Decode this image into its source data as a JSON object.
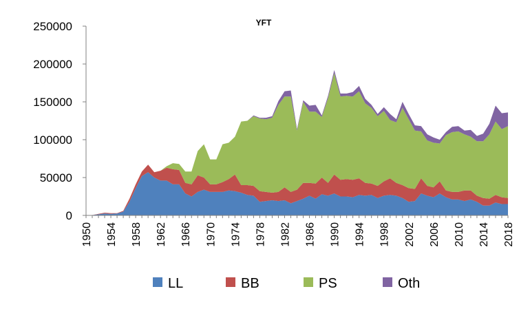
{
  "chart_data": {
    "type": "area",
    "stacked": true,
    "title": "YFT",
    "xlabel": "",
    "ylabel": "",
    "xlim": [
      1950,
      2018
    ],
    "ylim": [
      0,
      250000
    ],
    "y_ticks": [
      "0",
      "50000",
      "100000",
      "150000",
      "200000",
      "250000"
    ],
    "x_ticks": [
      "1950",
      "1954",
      "1958",
      "1962",
      "1966",
      "1970",
      "1974",
      "1978",
      "1982",
      "1986",
      "1990",
      "1994",
      "1998",
      "2002",
      "2006",
      "2010",
      "2014",
      "2018"
    ],
    "grid": false,
    "legend_position": "bottom",
    "x": [
      1950,
      1951,
      1952,
      1953,
      1954,
      1955,
      1956,
      1957,
      1958,
      1959,
      1960,
      1961,
      1962,
      1963,
      1964,
      1965,
      1966,
      1967,
      1968,
      1969,
      1970,
      1971,
      1972,
      1973,
      1974,
      1975,
      1976,
      1977,
      1978,
      1979,
      1980,
      1981,
      1982,
      1983,
      1984,
      1985,
      1986,
      1987,
      1988,
      1989,
      1990,
      1991,
      1992,
      1993,
      1994,
      1995,
      1996,
      1997,
      1998,
      1999,
      2000,
      2001,
      2002,
      2003,
      2004,
      2005,
      2006,
      2007,
      2008,
      2009,
      2010,
      2011,
      2012,
      2013,
      2014,
      2015,
      2016,
      2017,
      2018
    ],
    "series": [
      {
        "name": "LL",
        "color": "#4F81BD",
        "values": [
          0,
          500,
          1500,
          2500,
          2000,
          2500,
          5000,
          18000,
          36000,
          52000,
          57000,
          50000,
          46000,
          46000,
          41000,
          41000,
          29000,
          25000,
          31000,
          34000,
          31000,
          31000,
          31000,
          33000,
          32000,
          30000,
          27000,
          26000,
          18000,
          19000,
          20000,
          19000,
          20000,
          16000,
          19000,
          22000,
          26000,
          22000,
          28000,
          26000,
          29000,
          25000,
          25000,
          24000,
          27000,
          26000,
          27000,
          23000,
          26000,
          27000,
          26000,
          23000,
          18000,
          19000,
          29000,
          26000,
          24000,
          29000,
          24000,
          21000,
          21000,
          19000,
          21000,
          18000,
          13000,
          13000,
          17000,
          15000,
          15000
        ]
      },
      {
        "name": "BB",
        "color": "#C0504D",
        "values": [
          0,
          0,
          500,
          1000,
          1000,
          500,
          1000,
          4000,
          5000,
          6000,
          10000,
          7000,
          13000,
          17000,
          20000,
          19000,
          14000,
          16000,
          22000,
          16000,
          10000,
          10000,
          13000,
          15000,
          22000,
          10000,
          13000,
          13000,
          14000,
          12000,
          10000,
          12000,
          17000,
          15000,
          15000,
          21000,
          17000,
          20000,
          22000,
          17000,
          25000,
          22000,
          23000,
          23000,
          22000,
          17000,
          15000,
          16000,
          19000,
          22000,
          17000,
          17000,
          18000,
          16000,
          20000,
          13000,
          13000,
          16000,
          9000,
          10000,
          10000,
          14000,
          12000,
          8000,
          10000,
          9000,
          10000,
          9000,
          8000
        ]
      },
      {
        "name": "PS",
        "color": "#9BBB59",
        "values": [
          0,
          0,
          0,
          0,
          0,
          0,
          0,
          0,
          0,
          0,
          0,
          0,
          0,
          2000,
          8000,
          8000,
          15000,
          17000,
          32000,
          44000,
          33000,
          33000,
          50000,
          48000,
          50000,
          84000,
          85000,
          92000,
          96000,
          96000,
          99000,
          115000,
          120000,
          126000,
          78000,
          107000,
          94000,
          95000,
          80000,
          112000,
          134000,
          110000,
          110000,
          110000,
          115000,
          105000,
          100000,
          92000,
          93000,
          77000,
          80000,
          102000,
          91000,
          77000,
          62000,
          60000,
          59000,
          50000,
          73000,
          79000,
          80000,
          74000,
          71000,
          72000,
          75000,
          85000,
          97000,
          90000,
          95000
        ]
      },
      {
        "name": "Oth",
        "color": "#8064A2",
        "values": [
          0,
          0,
          0,
          0,
          0,
          0,
          0,
          0,
          0,
          0,
          0,
          0,
          0,
          0,
          0,
          0,
          0,
          0,
          0,
          0,
          0,
          0,
          0,
          0,
          0,
          0,
          0,
          1000,
          1000,
          2000,
          2000,
          5000,
          7000,
          8000,
          2000,
          2000,
          8000,
          9000,
          2000,
          3000,
          4000,
          4000,
          3000,
          6000,
          7000,
          6000,
          4000,
          3000,
          5000,
          8000,
          4000,
          8000,
          7000,
          7000,
          7000,
          8000,
          7000,
          5000,
          4000,
          7000,
          7000,
          5000,
          9000,
          7000,
          10000,
          14000,
          21000,
          21000,
          18000
        ]
      }
    ]
  }
}
